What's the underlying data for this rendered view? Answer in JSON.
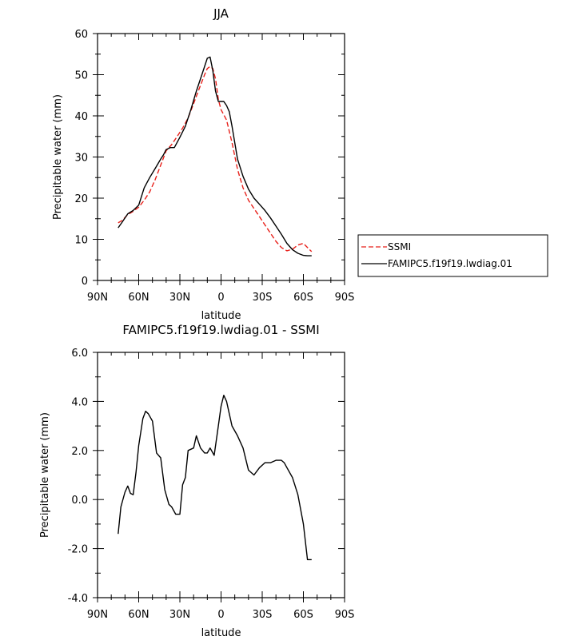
{
  "chart_data": [
    {
      "type": "line",
      "title": "JJA",
      "xlabel": "latitude",
      "ylabel": "Precipitable water (mm)",
      "xlim": [
        90,
        -90
      ],
      "ylim": [
        0,
        60
      ],
      "x_ticks": [
        90,
        60,
        30,
        0,
        -30,
        -60,
        -90
      ],
      "x_tick_labels": [
        "90N",
        "60N",
        "30N",
        "0",
        "30S",
        "60S",
        "90S"
      ],
      "y_ticks": [
        0,
        10,
        20,
        30,
        40,
        50,
        60
      ],
      "y_tick_labels": [
        "0",
        "10",
        "20",
        "30",
        "40",
        "50",
        "60"
      ],
      "legend": "right",
      "series": [
        {
          "name": "SSMI",
          "color": "#e8201a",
          "dash": "dashed",
          "x": [
            75,
            72,
            68,
            64,
            60,
            56,
            52,
            48,
            44,
            40,
            36,
            32,
            28,
            24,
            20,
            16,
            12,
            10,
            8,
            6,
            4,
            2,
            0,
            -4,
            -8,
            -12,
            -16,
            -20,
            -24,
            -28,
            -32,
            -36,
            -40,
            -44,
            -48,
            -52,
            -56,
            -60,
            -63,
            -66
          ],
          "values": [
            14,
            14.6,
            16,
            16.8,
            17.8,
            19.5,
            21.5,
            24.5,
            28,
            31.5,
            33,
            35,
            37,
            39.5,
            43,
            46.5,
            50,
            51.5,
            52,
            51.5,
            49,
            44,
            41.5,
            39,
            33.5,
            27,
            22.5,
            19.5,
            17.5,
            15.5,
            13.5,
            11.5,
            9.5,
            8,
            7.2,
            7.6,
            8.6,
            9,
            8,
            7
          ]
        },
        {
          "name": "FAMIPC5.f19f19.lwdiag.01",
          "color": "#000000",
          "dash": "solid",
          "x": [
            75,
            72,
            68,
            64,
            60,
            56,
            52,
            48,
            44,
            42,
            40,
            37,
            34,
            30,
            26,
            22,
            18,
            14,
            10,
            8,
            6,
            4,
            2,
            0,
            -2,
            -4,
            -6,
            -8,
            -12,
            -16,
            -20,
            -24,
            -28,
            -32,
            -36,
            -40,
            -44,
            -48,
            -52,
            -56,
            -60,
            -63,
            -66
          ],
          "values": [
            12.8,
            14.2,
            16.2,
            17,
            18.3,
            22.5,
            25,
            27.2,
            29.5,
            30.5,
            31.8,
            32.3,
            32.3,
            34.8,
            37.5,
            41.5,
            46,
            50,
            54,
            54.3,
            51,
            46,
            43.5,
            43.5,
            43.5,
            42.5,
            41,
            37.5,
            29.5,
            25.3,
            22.2,
            20,
            18.5,
            17,
            15.2,
            13.2,
            11.2,
            9,
            7.5,
            6.6,
            6.1,
            6,
            6
          ]
        }
      ]
    },
    {
      "type": "line",
      "title": "FAMIPC5.f19f19.lwdiag.01 - SSMI",
      "xlabel": "latitude",
      "ylabel": "Precipitable water (mm)",
      "xlim": [
        90,
        -90
      ],
      "ylim": [
        -4,
        6
      ],
      "x_ticks": [
        90,
        60,
        30,
        0,
        -30,
        -60,
        -90
      ],
      "x_tick_labels": [
        "90N",
        "60N",
        "30N",
        "0",
        "30S",
        "60S",
        "90S"
      ],
      "y_ticks": [
        -4,
        -2,
        0,
        2,
        4,
        6
      ],
      "y_tick_labels": [
        "-4.0",
        "-2.0",
        "0.0",
        "2.0",
        "4.0",
        "6.0"
      ],
      "series": [
        {
          "color": "#000000",
          "dash": "solid",
          "x": [
            75,
            73,
            70,
            68,
            66,
            64,
            62,
            60,
            57,
            55,
            53,
            50,
            47,
            44,
            41,
            38,
            36,
            33,
            30,
            28,
            26,
            24,
            20,
            18,
            15,
            12,
            10,
            8,
            5,
            2,
            0,
            -2,
            -4,
            -6,
            -8,
            -12,
            -16,
            -20,
            -24,
            -28,
            -32,
            -36,
            -40,
            -44,
            -46,
            -48,
            -52,
            -56,
            -60,
            -63,
            -66
          ],
          "values": [
            -1.4,
            -0.3,
            0.3,
            0.55,
            0.25,
            0.2,
            1.1,
            2.2,
            3.3,
            3.6,
            3.5,
            3.2,
            1.9,
            1.7,
            0.4,
            -0.2,
            -0.3,
            -0.6,
            -0.6,
            0.6,
            0.9,
            2,
            2.1,
            2.6,
            2.1,
            1.9,
            1.9,
            2.1,
            1.8,
            3,
            3.8,
            4.25,
            4.0,
            3.5,
            3.0,
            2.6,
            2.1,
            1.2,
            1.0,
            1.3,
            1.5,
            1.5,
            1.6,
            1.6,
            1.5,
            1.3,
            0.9,
            0.2,
            -1.0,
            -2.45,
            -2.45
          ]
        }
      ]
    }
  ]
}
